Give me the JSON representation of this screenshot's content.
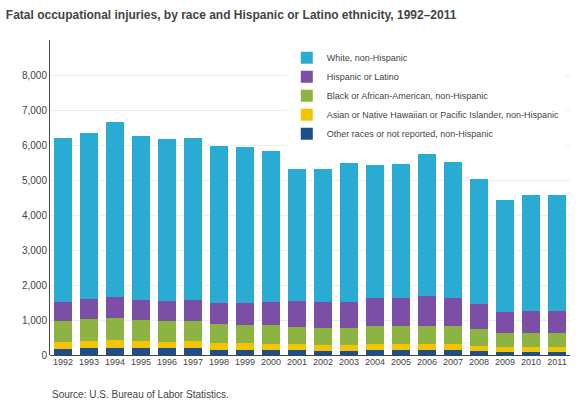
{
  "chart_data": {
    "type": "bar",
    "title": "Fatal occupational injuries, by race and Hispanic or Latino ethnicity, 1992–2011",
    "stacked": true,
    "categories": [
      "1992",
      "1993",
      "1994",
      "1995",
      "1996",
      "1997",
      "1998",
      "1999",
      "2000",
      "2001",
      "2002",
      "2003",
      "2004",
      "2005",
      "2006",
      "2007",
      "2008",
      "2009",
      "2010",
      "2011"
    ],
    "series": [
      {
        "name": "Other races or not reported, non-Hispanic",
        "color": "#1F4E8C",
        "values": [
          185,
          195,
          200,
          190,
          190,
          195,
          145,
          140,
          140,
          130,
          125,
          125,
          140,
          140,
          140,
          135,
          115,
          95,
          95,
          90
        ]
      },
      {
        "name": "Asian or Native Hawaiian or Pacific Islander, non-Hispanic",
        "color": "#F5C400",
        "values": [
          195,
          205,
          215,
          205,
          195,
          195,
          195,
          195,
          185,
          185,
          165,
          165,
          175,
          175,
          175,
          175,
          155,
          125,
          125,
          125
        ]
      },
      {
        "name": "Black or African-American, non-Hispanic",
        "color": "#8DB443",
        "values": [
          600,
          620,
          640,
          600,
          580,
          590,
          550,
          530,
          520,
          490,
          490,
          480,
          510,
          510,
          520,
          510,
          470,
          420,
          420,
          420
        ]
      },
      {
        "name": "Hispanic or Latino",
        "color": "#7B4FA6",
        "values": [
          540,
          570,
          610,
          580,
          580,
          580,
          600,
          630,
          670,
          740,
          740,
          740,
          790,
          800,
          850,
          820,
          720,
          590,
          610,
          630
        ]
      },
      {
        "name": "White, non-Hispanic",
        "color": "#29ABD4",
        "values": [
          4680,
          4740,
          4980,
          4680,
          4640,
          4640,
          4480,
          4440,
          4310,
          3770,
          3800,
          3980,
          3820,
          3820,
          4050,
          3870,
          3580,
          3190,
          3310,
          3310
        ]
      }
    ],
    "ylim": [
      0,
      9000
    ],
    "yticks": [
      0,
      {
        "value": 1000,
        "label": "1,000"
      },
      {
        "value": 2000,
        "label": "2,000"
      },
      {
        "value": 3000,
        "label": "3,000"
      },
      {
        "value": 4000,
        "label": "4,000"
      },
      {
        "value": 5000,
        "label": "5,000"
      },
      {
        "value": 6000,
        "label": "6,000"
      },
      {
        "value": 7000,
        "label": "7,000"
      },
      {
        "value": 8000,
        "label": "8,000"
      }
    ],
    "grid": true,
    "legend": "upper right",
    "annotations": [
      {
        "text": "Source: U.S. Bureau of Labor Statistics."
      }
    ]
  }
}
